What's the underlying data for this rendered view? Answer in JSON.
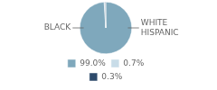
{
  "chart_data": {
    "type": "pie",
    "categories": [
      "99.0%",
      "0.7%",
      "0.3%"
    ],
    "values": [
      99.0,
      0.7,
      0.3
    ],
    "colors": [
      "#7fa8bc",
      "#c8dce8",
      "#2d4a6b"
    ],
    "annotations": [
      "BLACK",
      "WHITE\nHISPANIC"
    ],
    "legend": "bottom"
  }
}
